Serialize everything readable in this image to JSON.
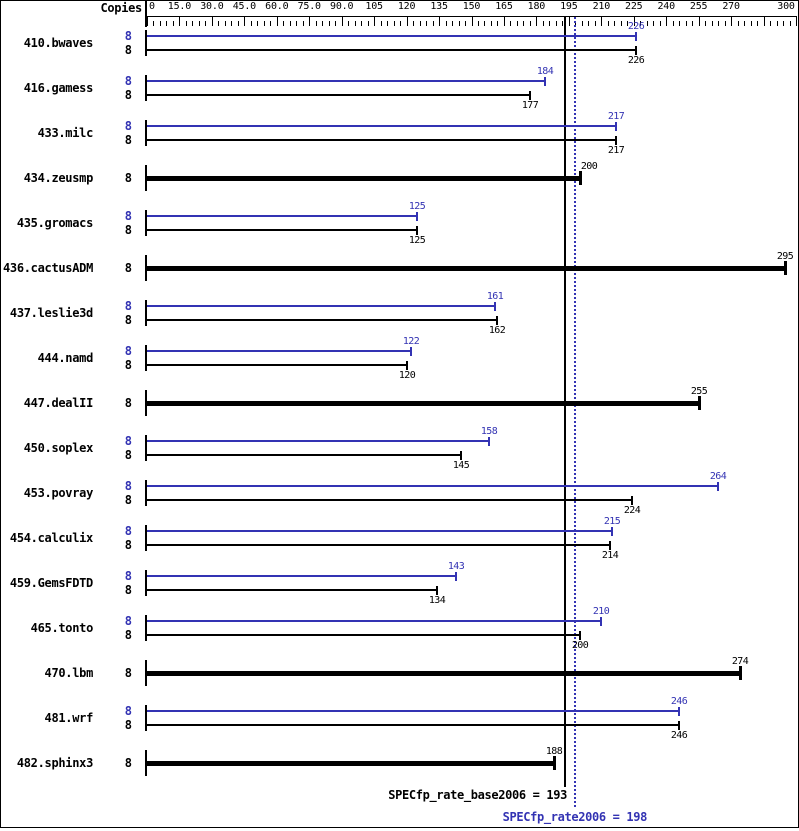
{
  "colors": {
    "peak_blue": "#3333b3",
    "base_black": "#000000",
    "background": "#ffffff"
  },
  "chart_data": {
    "type": "bar",
    "orientation": "horizontal",
    "copies_column_header": "Copies",
    "xlim": [
      0,
      300
    ],
    "x_major_tick_step": 15,
    "x_minor_tick_step": 3,
    "x_tick_labels": [
      {
        "value": 0,
        "label": "0"
      },
      {
        "value": 15,
        "label": "15.0"
      },
      {
        "value": 30,
        "label": "30.0"
      },
      {
        "value": 45,
        "label": "45.0"
      },
      {
        "value": 60,
        "label": "60.0"
      },
      {
        "value": 75,
        "label": "75.0"
      },
      {
        "value": 90,
        "label": "90.0"
      },
      {
        "value": 105,
        "label": "105"
      },
      {
        "value": 120,
        "label": "120"
      },
      {
        "value": 135,
        "label": "135"
      },
      {
        "value": 150,
        "label": "150"
      },
      {
        "value": 165,
        "label": "165"
      },
      {
        "value": 180,
        "label": "180"
      },
      {
        "value": 195,
        "label": "195"
      },
      {
        "value": 210,
        "label": "210"
      },
      {
        "value": 225,
        "label": "225"
      },
      {
        "value": 240,
        "label": "240"
      },
      {
        "value": 255,
        "label": "255"
      },
      {
        "value": 270,
        "label": "270"
      },
      {
        "value": 300,
        "label": "300"
      }
    ],
    "series": [
      {
        "name": "peak",
        "color": "#3333b3"
      },
      {
        "name": "base",
        "color": "#000000"
      }
    ],
    "benchmarks": [
      {
        "name": "410.bwaves",
        "copies": 8,
        "peak": 226,
        "base": 226
      },
      {
        "name": "416.gamess",
        "copies": 8,
        "peak": 184,
        "base": 177
      },
      {
        "name": "433.milc",
        "copies": 8,
        "peak": 217,
        "base": 217
      },
      {
        "name": "434.zeusmp",
        "copies": 8,
        "single": 200,
        "label_dx": 9
      },
      {
        "name": "435.gromacs",
        "copies": 8,
        "peak": 125,
        "base": 125
      },
      {
        "name": "436.cactusADM",
        "copies": 8,
        "single": 295
      },
      {
        "name": "437.leslie3d",
        "copies": 8,
        "peak": 161,
        "base": 162
      },
      {
        "name": "444.namd",
        "copies": 8,
        "peak": 122,
        "base": 120
      },
      {
        "name": "447.dealII",
        "copies": 8,
        "single": 255
      },
      {
        "name": "450.soplex",
        "copies": 8,
        "peak": 158,
        "base": 145
      },
      {
        "name": "453.povray",
        "copies": 8,
        "peak": 264,
        "base": 224
      },
      {
        "name": "454.calculix",
        "copies": 8,
        "peak": 215,
        "base": 214
      },
      {
        "name": "459.GemsFDTD",
        "copies": 8,
        "peak": 143,
        "base": 134
      },
      {
        "name": "465.tonto",
        "copies": 8,
        "peak": 210,
        "base": 200
      },
      {
        "name": "470.lbm",
        "copies": 8,
        "single": 274
      },
      {
        "name": "481.wrf",
        "copies": 8,
        "peak": 246,
        "base": 246
      },
      {
        "name": "482.sphinx3",
        "copies": 8,
        "single": 188
      }
    ],
    "reference_lines": [
      {
        "name": "base_mean",
        "value": 193,
        "style": "solid",
        "color": "#000000",
        "label": "SPECfp_rate_base2006 = 193"
      },
      {
        "name": "peak_mean",
        "value": 198,
        "style": "dotted",
        "color": "#3333b3",
        "label": "SPECfp_rate2006 = 198"
      }
    ]
  }
}
